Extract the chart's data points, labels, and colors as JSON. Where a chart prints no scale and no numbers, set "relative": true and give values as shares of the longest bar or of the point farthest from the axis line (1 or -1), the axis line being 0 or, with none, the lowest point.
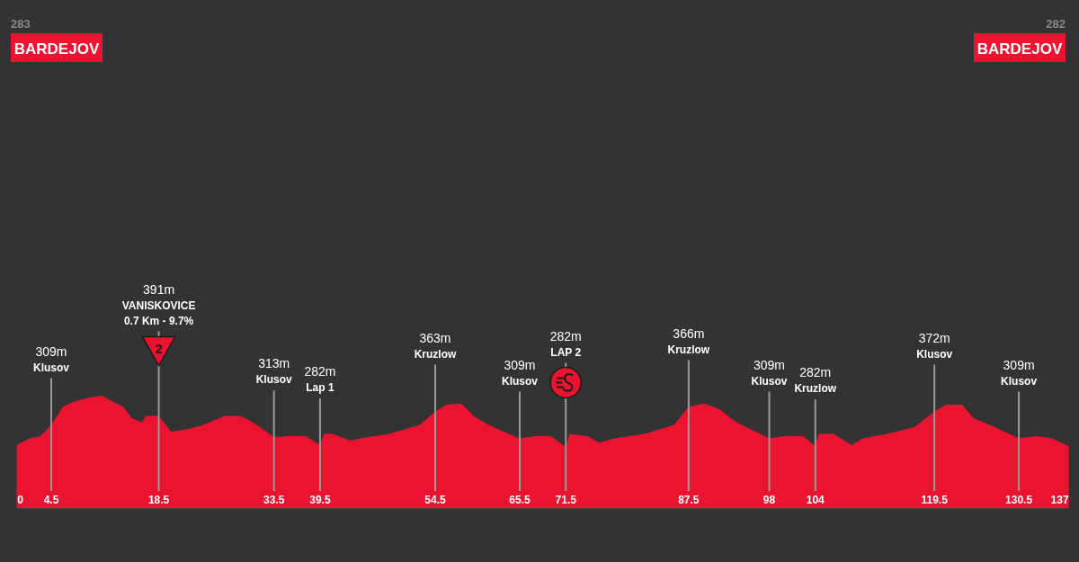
{
  "chart_data": {
    "type": "area",
    "relative": true,
    "x": [
      0,
      1.7,
      3.1,
      4.5,
      6.0,
      7.2,
      9.2,
      11.1,
      12.7,
      13.9,
      15.0,
      16.3,
      16.8,
      18.5,
      20.1,
      22.1,
      23.9,
      27.1,
      29.1,
      30.3,
      32.1,
      33.5,
      35.3,
      37.6,
      39.5,
      40.0,
      41.1,
      43.5,
      44.7,
      48.5,
      52.5,
      54.5,
      56.0,
      57.9,
      59.5,
      61.4,
      63.4,
      65.5,
      67.7,
      69.6,
      71.5,
      72.0,
      74.3,
      75.9,
      77.8,
      81.8,
      85.6,
      87.5,
      89.5,
      91.5,
      93.8,
      96.2,
      98.0,
      100.0,
      102.4,
      104.0,
      104.4,
      106.4,
      108.7,
      110.2,
      113.4,
      116.9,
      119.5,
      121.1,
      123.1,
      124.6,
      127.4,
      130.5,
      132.8,
      134.8,
      137
    ],
    "series": [
      {
        "color": "#ec1330",
        "values": [
          0.56,
          0.62,
          0.64,
          0.74,
          0.9,
          0.94,
          0.98,
          1,
          0.94,
          0.9,
          0.8,
          0.76,
          0.82,
          0.82,
          0.68,
          0.7,
          0.73,
          0.82,
          0.82,
          0.78,
          0.7,
          0.63,
          0.64,
          0.64,
          0.56,
          0.66,
          0.66,
          0.6,
          0.62,
          0.66,
          0.74,
          0.86,
          0.92,
          0.93,
          0.82,
          0.74,
          0.68,
          0.62,
          0.64,
          0.64,
          0.54,
          0.66,
          0.64,
          0.58,
          0.62,
          0.66,
          0.74,
          0.9,
          0.93,
          0.88,
          0.76,
          0.68,
          0.62,
          0.64,
          0.64,
          0.55,
          0.66,
          0.66,
          0.56,
          0.62,
          0.66,
          0.72,
          0.86,
          0.92,
          0.92,
          0.8,
          0.72,
          0.62,
          0.64,
          0.62,
          0.55
        ]
      }
    ],
    "xlim": [
      0,
      137
    ],
    "xticks": [
      0,
      4.5,
      18.5,
      33.5,
      39.5,
      54.5,
      65.5,
      71.5,
      87.5,
      98,
      104,
      119.5,
      130.5,
      137
    ],
    "ref_lines": [
      {
        "axis": "x",
        "value": 4.5,
        "label": "309m\nKlusov"
      },
      {
        "axis": "x",
        "value": 18.5,
        "label": "391m\nVANISKOVICE\n0.7 Km - 9.7%\n2"
      },
      {
        "axis": "x",
        "value": 33.5,
        "label": "313m\nKlusov"
      },
      {
        "axis": "x",
        "value": 39.5,
        "label": "282m\nLap 1"
      },
      {
        "axis": "x",
        "value": 54.5,
        "label": "363m\nKruzlow"
      },
      {
        "axis": "x",
        "value": 65.5,
        "label": "309m\nKlusov"
      },
      {
        "axis": "x",
        "value": 71.5,
        "label": "282m\nLAP 2"
      },
      {
        "axis": "x",
        "value": 87.5,
        "label": "366m\nKruzlow"
      },
      {
        "axis": "x",
        "value": 98,
        "label": "309m\nKlusov"
      },
      {
        "axis": "x",
        "value": 104,
        "label": "282m\nKruzlow"
      },
      {
        "axis": "x",
        "value": 119.5,
        "label": "372m\nKlusov"
      },
      {
        "axis": "x",
        "value": 130.5,
        "label": "309m\nKlusov"
      }
    ],
    "annotations": [
      "283",
      "BARDEJOV",
      "282",
      "BARDEJOV"
    ]
  }
}
